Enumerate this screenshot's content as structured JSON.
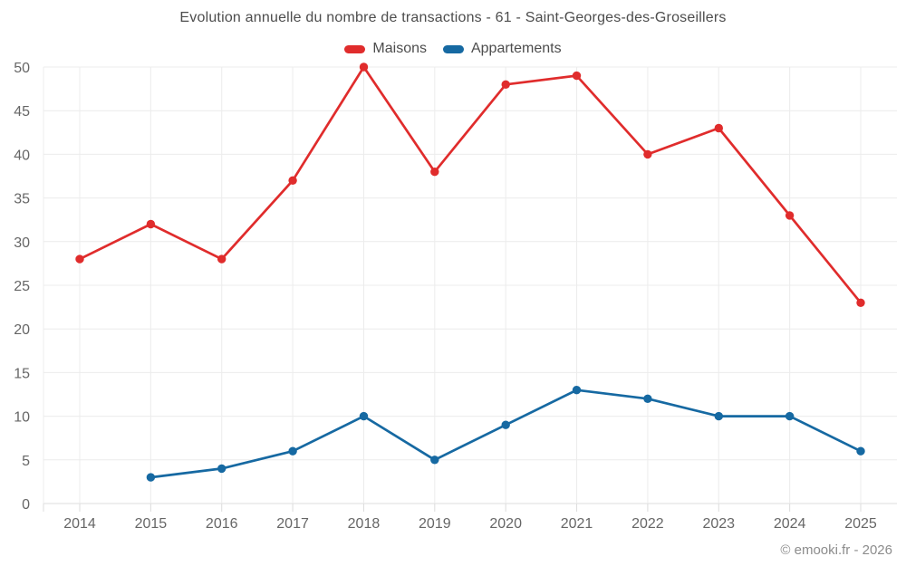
{
  "title": "Evolution annuelle du nombre de transactions - 61 - Saint-Georges-des-Groseillers",
  "footer": "© emooki.fr - 2026",
  "colors": {
    "maisons": "#e02c2c",
    "appartements": "#1669a2",
    "grid": "#ececec",
    "axis": "#dcdcdc",
    "axis_text": "#666666",
    "title_text": "#4d4d4d"
  },
  "chart_data": {
    "type": "line",
    "title": "Evolution annuelle du nombre de transactions - 61 - Saint-Georges-des-Groseillers",
    "categories": [
      "2014",
      "2015",
      "2016",
      "2017",
      "2018",
      "2019",
      "2020",
      "2021",
      "2022",
      "2023",
      "2024",
      "2025"
    ],
    "series": [
      {
        "name": "Maisons",
        "color": "#e02c2c",
        "values": [
          28,
          32,
          28,
          37,
          50,
          38,
          48,
          49,
          40,
          43,
          33,
          23
        ]
      },
      {
        "name": "Appartements",
        "color": "#1669a2",
        "values": [
          null,
          3,
          4,
          6,
          10,
          5,
          9,
          13,
          12,
          10,
          10,
          6
        ]
      }
    ],
    "xlabel": "",
    "ylabel": "",
    "ylim": [
      0,
      50
    ],
    "ytick_step": 5,
    "grid": true,
    "legend_position": "top",
    "marker": "circle"
  }
}
